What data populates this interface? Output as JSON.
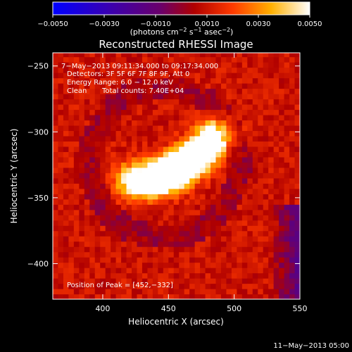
{
  "chart_data": {
    "type": "heatmap",
    "title": "Reconstructed RHESSI Image",
    "xlabel": "Heliocentric X (arcsec)",
    "ylabel": "Heliocentric Y (arcsec)",
    "xlim": [
      362,
      550
    ],
    "ylim": [
      -427,
      -240
    ],
    "xticks": [
      400,
      450,
      500,
      550
    ],
    "yticks": [
      -250,
      -300,
      -350,
      -400
    ],
    "colorbar": {
      "range": [
        -0.005,
        0.005
      ],
      "ticks": [
        "−0.0050",
        "−0.0030",
        "−0.0010",
        "0.0010",
        "0.0030",
        "0.0050"
      ],
      "unit_parts": [
        "(photons cm",
        "−2",
        " s",
        "−1",
        " asec",
        "−2",
        ")"
      ],
      "colormap": "blue-purple-red-orange-yellow-white"
    },
    "annotations": [
      "7−May−2013 09:11:34.000 to 09:17:34.000",
      "Detectors: 3F 5F 6F 7F 8F 9F, Att 0",
      "Energy Range: 6.0 − 12.0 keV",
      "Clean",
      "Total counts: 7.40E+04"
    ],
    "peak_label": "Position of Peak = [452,−332]",
    "peak": {
      "x": 452,
      "y": -332
    },
    "source_arc": [
      {
        "x": 418,
        "y": -338,
        "w": 0.0028
      },
      {
        "x": 430,
        "y": -340,
        "w": 0.004
      },
      {
        "x": 442,
        "y": -336,
        "w": 0.0047
      },
      {
        "x": 452,
        "y": -332,
        "w": 0.005
      },
      {
        "x": 462,
        "y": -326,
        "w": 0.0047
      },
      {
        "x": 472,
        "y": -318,
        "w": 0.0042
      },
      {
        "x": 480,
        "y": -310,
        "w": 0.0035
      },
      {
        "x": 486,
        "y": -302,
        "w": 0.0025
      }
    ],
    "background_level": 0.001,
    "footer_timestamp": "11−May−2013 05:00"
  }
}
